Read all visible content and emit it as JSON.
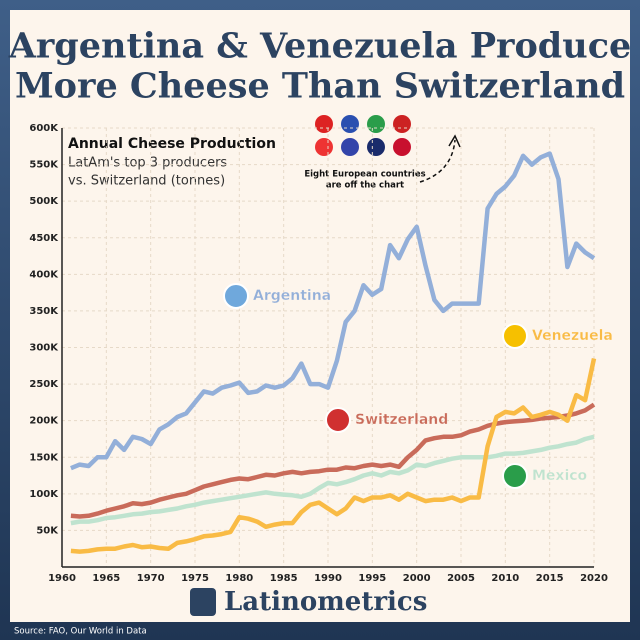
{
  "chart_data": {
    "type": "line",
    "title": [
      "Argentina & Venezuela Produce",
      "More Cheese Than Switzerland"
    ],
    "subtitle": {
      "heading": "Annual Cheese Production",
      "lines": [
        "LatAm's top 3 producers",
        "vs. Switzerland (tonnes)"
      ]
    },
    "annotation": [
      "Eight European countries",
      "are off the chart"
    ],
    "brand": "Latinometrics",
    "source": "Source: FAO, Our World in Data",
    "x": [
      1961,
      1962,
      1963,
      1964,
      1965,
      1966,
      1967,
      1968,
      1969,
      1970,
      1971,
      1972,
      1973,
      1974,
      1975,
      1976,
      1977,
      1978,
      1979,
      1980,
      1981,
      1982,
      1983,
      1984,
      1985,
      1986,
      1987,
      1988,
      1989,
      1990,
      1991,
      1992,
      1993,
      1994,
      1995,
      1996,
      1997,
      1998,
      1999,
      2000,
      2001,
      2002,
      2003,
      2004,
      2005,
      2006,
      2007,
      2008,
      2009,
      2010,
      2011,
      2012,
      2013,
      2014,
      2015,
      2016,
      2017,
      2018,
      2019,
      2020
    ],
    "xlim": [
      1960,
      2020
    ],
    "xticks": [
      1960,
      1965,
      1970,
      1975,
      1980,
      1985,
      1990,
      1995,
      2000,
      2005,
      2010,
      2015,
      2020
    ],
    "ylim": [
      0,
      600000
    ],
    "yticks": [
      {
        "value": 50000,
        "label": "50K"
      },
      {
        "value": 100000,
        "label": "100K"
      },
      {
        "value": 150000,
        "label": "150K"
      },
      {
        "value": 200000,
        "label": "200K"
      },
      {
        "value": 250000,
        "label": "250K"
      },
      {
        "value": 300000,
        "label": "300K"
      },
      {
        "value": 350000,
        "label": "350K"
      },
      {
        "value": 400000,
        "label": "400K"
      },
      {
        "value": 450000,
        "label": "450K"
      },
      {
        "value": 500000,
        "label": "500K"
      },
      {
        "value": 550000,
        "label": "550K"
      },
      {
        "value": 600000,
        "label": "600K"
      }
    ],
    "grid": true,
    "series": [
      {
        "name": "Argentina",
        "color": "#93afd9",
        "values": [
          135000,
          140000,
          138000,
          150000,
          150000,
          172000,
          160000,
          178000,
          175000,
          168000,
          188000,
          195000,
          205000,
          210000,
          225000,
          240000,
          237000,
          245000,
          248000,
          252000,
          238000,
          240000,
          248000,
          245000,
          248000,
          258000,
          278000,
          250000,
          250000,
          245000,
          282000,
          335000,
          350000,
          385000,
          372000,
          380000,
          440000,
          422000,
          448000,
          465000,
          412000,
          365000,
          350000,
          360000,
          360000,
          360000,
          360000,
          490000,
          510000,
          520000,
          535000,
          562000,
          550000,
          560000,
          565000,
          530000,
          410000,
          442000,
          430000,
          422000
        ]
      },
      {
        "name": "Switzerland",
        "color": "#c96b5a",
        "values": [
          70000,
          69000,
          70000,
          73000,
          77000,
          80000,
          83000,
          87000,
          86000,
          88000,
          92000,
          95000,
          98000,
          100000,
          105000,
          110000,
          113000,
          116000,
          119000,
          121000,
          120000,
          123000,
          126000,
          125000,
          128000,
          130000,
          128000,
          130000,
          131000,
          133000,
          133000,
          136000,
          135000,
          138000,
          140000,
          138000,
          140000,
          137000,
          150000,
          160000,
          173000,
          176000,
          178000,
          178000,
          180000,
          185000,
          188000,
          193000,
          196000,
          198000,
          199000,
          200000,
          201000,
          203000,
          204000,
          205000,
          207000,
          210000,
          214000,
          222000
        ]
      },
      {
        "name": "Venezuela",
        "color": "#f9bb45",
        "values": [
          22000,
          21000,
          22000,
          24000,
          25000,
          25000,
          28000,
          30000,
          27000,
          28000,
          26000,
          25000,
          33000,
          35000,
          38000,
          42000,
          43000,
          45000,
          48000,
          68000,
          66000,
          62000,
          55000,
          58000,
          60000,
          60000,
          75000,
          85000,
          88000,
          80000,
          72000,
          80000,
          95000,
          90000,
          95000,
          95000,
          98000,
          92000,
          100000,
          95000,
          90000,
          92000,
          92000,
          95000,
          90000,
          95000,
          95000,
          165000,
          205000,
          212000,
          210000,
          218000,
          205000,
          208000,
          212000,
          208000,
          200000,
          235000,
          228000,
          285000
        ]
      },
      {
        "name": "Mexico",
        "color": "#bfe3cf",
        "values": [
          60000,
          62000,
          62000,
          64000,
          67000,
          68000,
          70000,
          72000,
          73000,
          75000,
          76000,
          78000,
          80000,
          83000,
          85000,
          88000,
          90000,
          92000,
          94000,
          96000,
          98000,
          100000,
          102000,
          100000,
          99000,
          98000,
          96000,
          100000,
          108000,
          115000,
          113000,
          116000,
          120000,
          125000,
          128000,
          125000,
          130000,
          128000,
          132000,
          140000,
          138000,
          142000,
          145000,
          148000,
          150000,
          150000,
          150000,
          150000,
          152000,
          155000,
          155000,
          156000,
          158000,
          160000,
          163000,
          165000,
          168000,
          170000,
          175000,
          178000
        ]
      }
    ]
  }
}
